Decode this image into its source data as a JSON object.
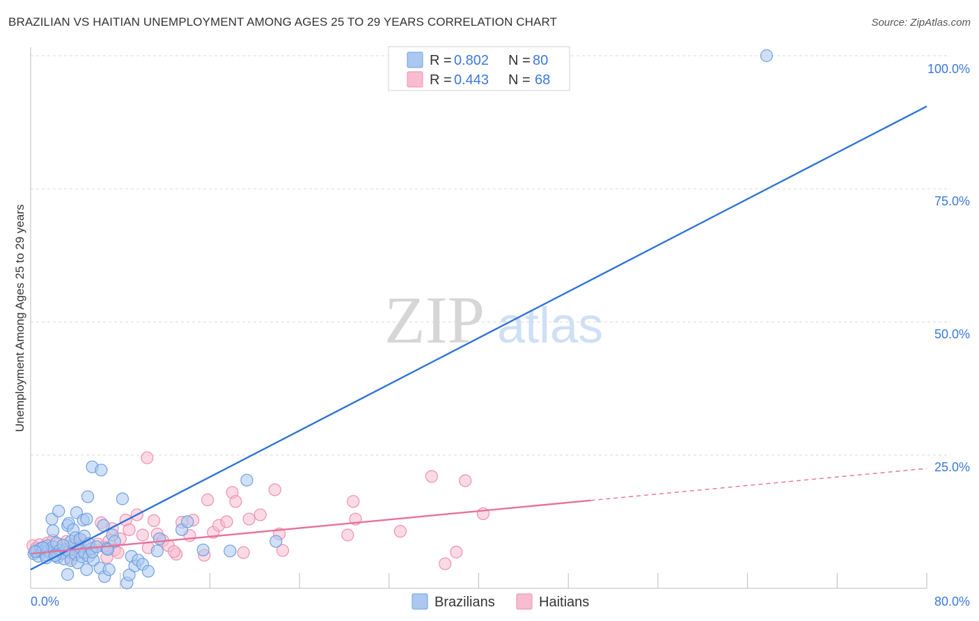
{
  "title": "BRAZILIAN VS HAITIAN UNEMPLOYMENT AMONG AGES 25 TO 29 YEARS CORRELATION CHART",
  "source": "Source: ZipAtlas.com",
  "watermark": {
    "zip": "ZIP",
    "atlas": "atlas"
  },
  "colors": {
    "brazilians_fill": "#aac8f0",
    "brazilians_stroke": "#6f9fe0",
    "brazilians_line": "#2f73d6",
    "haitians_fill": "#f7bcd0",
    "haitians_stroke": "#ee8fb0",
    "haitians_line": "#e8709a",
    "tick_label": "#3b78d8",
    "grid": "#d9d9d9"
  },
  "legend": {
    "rows": [
      {
        "r_label": "R = ",
        "r_value": "0.802",
        "n_label": "N = ",
        "n_value": "80"
      },
      {
        "r_label": "R = ",
        "r_value": "0.443",
        "n_label": "N = ",
        "n_value": "68"
      }
    ]
  },
  "chart_data": {
    "type": "scatter",
    "title": "BRAZILIAN VS HAITIAN UNEMPLOYMENT AMONG AGES 25 TO 29 YEARS CORRELATION CHART",
    "xlabel": "",
    "ylabel": "Unemployment Among Ages 25 to 29 years",
    "xlim": [
      0,
      80
    ],
    "ylim": [
      0,
      100
    ],
    "x_tick_labels": [
      "0.0%",
      "80.0%"
    ],
    "y_ticks": [
      25,
      50,
      75,
      100
    ],
    "y_tick_labels": [
      "25.0%",
      "50.0%",
      "75.0%",
      "100.0%"
    ],
    "legend_position": "top-center",
    "series": [
      {
        "name": "Brazilians",
        "r": 0.802,
        "n": 80,
        "trend": {
          "x": [
            0,
            80
          ],
          "y": [
            3.5,
            90.5
          ]
        },
        "points": [
          [
            0.3,
            6.5
          ],
          [
            0.5,
            7.0
          ],
          [
            0.7,
            6.0
          ],
          [
            0.9,
            7.5
          ],
          [
            1.0,
            6.8
          ],
          [
            1.2,
            7.2
          ],
          [
            1.3,
            6.3
          ],
          [
            1.5,
            8.0
          ],
          [
            1.6,
            7.0
          ],
          [
            1.8,
            6.5
          ],
          [
            2.0,
            7.8
          ],
          [
            2.1,
            6.2
          ],
          [
            2.3,
            8.5
          ],
          [
            2.4,
            5.8
          ],
          [
            2.6,
            7.1
          ],
          [
            2.8,
            6.6
          ],
          [
            3.0,
            5.5
          ],
          [
            3.2,
            7.3
          ],
          [
            3.4,
            6.9
          ],
          [
            3.6,
            5.2
          ],
          [
            3.8,
            8.2
          ],
          [
            4.0,
            6.4
          ],
          [
            4.2,
            4.8
          ],
          [
            4.4,
            7.7
          ],
          [
            4.6,
            5.9
          ],
          [
            4.8,
            6.7
          ],
          [
            5.0,
            3.5
          ],
          [
            5.2,
            6.0
          ],
          [
            5.4,
            7.4
          ],
          [
            5.6,
            5.3
          ],
          [
            1.9,
            13.0
          ],
          [
            2.0,
            10.8
          ],
          [
            2.5,
            14.5
          ],
          [
            3.3,
            11.8
          ],
          [
            3.4,
            12.2
          ],
          [
            3.6,
            8.8
          ],
          [
            3.8,
            11.0
          ],
          [
            4.0,
            9.5
          ],
          [
            4.1,
            14.2
          ],
          [
            4.4,
            9.2
          ],
          [
            4.7,
            12.8
          ],
          [
            4.8,
            9.8
          ],
          [
            5.1,
            17.2
          ],
          [
            5.0,
            13.0
          ],
          [
            5.2,
            8.4
          ],
          [
            5.5,
            6.8
          ],
          [
            5.9,
            7.8
          ],
          [
            6.2,
            3.8
          ],
          [
            6.6,
            2.2
          ],
          [
            6.8,
            7.5
          ],
          [
            5.5,
            22.8
          ],
          [
            6.3,
            22.2
          ],
          [
            6.5,
            11.8
          ],
          [
            6.9,
            7.3
          ],
          [
            7.0,
            3.5
          ],
          [
            7.3,
            10.0
          ],
          [
            7.5,
            8.8
          ],
          [
            8.2,
            16.8
          ],
          [
            8.6,
            1.0
          ],
          [
            8.8,
            2.5
          ],
          [
            9.0,
            6.0
          ],
          [
            9.3,
            4.2
          ],
          [
            9.6,
            5.3
          ],
          [
            10.0,
            4.5
          ],
          [
            10.5,
            3.2
          ],
          [
            11.3,
            7.0
          ],
          [
            11.5,
            9.3
          ],
          [
            13.5,
            11.0
          ],
          [
            14.0,
            12.5
          ],
          [
            15.4,
            7.2
          ],
          [
            17.8,
            7.0
          ],
          [
            19.3,
            20.3
          ],
          [
            21.9,
            8.8
          ],
          [
            65.7,
            100.0
          ],
          [
            3.3,
            2.6
          ],
          [
            1.4,
            5.7
          ],
          [
            2.2,
            6.1
          ],
          [
            1.1,
            7.6
          ],
          [
            0.4,
            6.9
          ],
          [
            2.9,
            8.1
          ]
        ]
      },
      {
        "name": "Haitians",
        "r": 0.443,
        "n": 68,
        "trend": {
          "x": [
            0,
            50
          ],
          "y": [
            6.5,
            16.5
          ]
        },
        "trend_dashed": {
          "x": [
            50,
            80
          ],
          "y": [
            16.5,
            22.5
          ]
        },
        "points": [
          [
            0.2,
            8.0
          ],
          [
            0.5,
            7.5
          ],
          [
            0.8,
            8.2
          ],
          [
            1.0,
            6.8
          ],
          [
            1.2,
            7.8
          ],
          [
            1.5,
            8.5
          ],
          [
            1.7,
            7.2
          ],
          [
            2.0,
            9.0
          ],
          [
            2.2,
            7.0
          ],
          [
            2.5,
            8.3
          ],
          [
            2.8,
            6.5
          ],
          [
            3.0,
            7.9
          ],
          [
            3.2,
            8.8
          ],
          [
            3.5,
            7.3
          ],
          [
            3.8,
            6.2
          ],
          [
            4.0,
            8.6
          ],
          [
            4.2,
            7.6
          ],
          [
            4.5,
            9.2
          ],
          [
            4.8,
            6.8
          ],
          [
            5.0,
            8.0
          ],
          [
            5.5,
            7.5
          ],
          [
            6.0,
            8.3
          ],
          [
            6.3,
            12.3
          ],
          [
            6.6,
            7.8
          ],
          [
            7.0,
            8.9
          ],
          [
            7.3,
            11.2
          ],
          [
            7.5,
            7.2
          ],
          [
            7.8,
            6.7
          ],
          [
            8.0,
            9.3
          ],
          [
            8.5,
            12.8
          ],
          [
            8.8,
            11.0
          ],
          [
            9.5,
            13.8
          ],
          [
            10.0,
            10.0
          ],
          [
            10.5,
            7.6
          ],
          [
            11.0,
            12.7
          ],
          [
            11.3,
            10.2
          ],
          [
            11.8,
            9.0
          ],
          [
            12.3,
            8.0
          ],
          [
            13.0,
            6.4
          ],
          [
            13.5,
            12.4
          ],
          [
            14.2,
            9.9
          ],
          [
            14.5,
            12.8
          ],
          [
            15.5,
            6.2
          ],
          [
            15.8,
            16.6
          ],
          [
            16.3,
            10.5
          ],
          [
            16.8,
            11.8
          ],
          [
            17.5,
            12.5
          ],
          [
            18.0,
            18.0
          ],
          [
            18.3,
            16.3
          ],
          [
            19.0,
            6.7
          ],
          [
            19.5,
            13.0
          ],
          [
            20.5,
            13.8
          ],
          [
            21.8,
            18.5
          ],
          [
            22.2,
            10.2
          ],
          [
            22.5,
            7.1
          ],
          [
            10.4,
            24.5
          ],
          [
            28.3,
            10.0
          ],
          [
            28.8,
            16.3
          ],
          [
            29.0,
            13.0
          ],
          [
            33.0,
            10.7
          ],
          [
            35.8,
            21.0
          ],
          [
            37.0,
            4.6
          ],
          [
            38.0,
            6.8
          ],
          [
            38.8,
            20.2
          ],
          [
            40.4,
            14.0
          ],
          [
            6.8,
            5.8
          ],
          [
            3.6,
            5.6
          ],
          [
            12.8,
            6.9
          ]
        ]
      }
    ]
  }
}
